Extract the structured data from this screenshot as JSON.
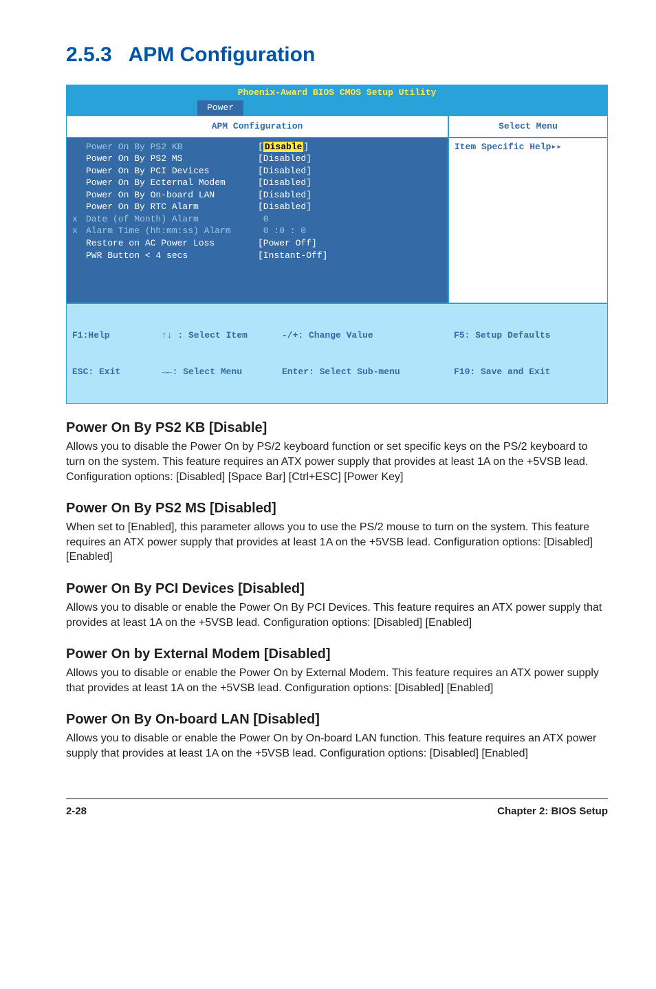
{
  "section": {
    "number": "2.5.3",
    "title": "APM Configuration"
  },
  "bios": {
    "window_title": "Phoenix-Award BIOS CMOS Setup Utility",
    "tab": "Power",
    "left_header": "APM Configuration",
    "right_header": "Select Menu",
    "help_text": "Item Specific Help",
    "rows": [
      {
        "c1": "",
        "c2": "Power On By PS2 KB",
        "val": "Disable",
        "dim": true,
        "highlighted": true,
        "bracket": true
      },
      {
        "c1": "",
        "c2": "Power On By PS2 MS",
        "val": "[Disabled]"
      },
      {
        "c1": "",
        "c2": "Power On By PCI Devices",
        "val": "[Disabled]"
      },
      {
        "c1": "",
        "c2": "Power On By Ecternal Modem",
        "val": "[Disabled]"
      },
      {
        "c1": "",
        "c2": "Power On By On-board LAN",
        "val": "[Disabled]"
      },
      {
        "c1": "",
        "c2": "Power On By RTC Alarm",
        "val": "[Disabled]"
      },
      {
        "c1": "x",
        "c2": "Date (of Month) Alarm",
        "val": " 0",
        "dim": true
      },
      {
        "c1": "x",
        "c2": "Alarm Time (hh:mm:ss) Alarm",
        "val": " 0 :0 : 0",
        "dim": true
      },
      {
        "c1": "",
        "c2": "Restore on AC Power Loss",
        "val": "[Power Off]"
      },
      {
        "c1": "",
        "c2": "PWR Button < 4 secs",
        "val": "[Instant-Off]"
      }
    ],
    "footer": {
      "r1c1": "F1:Help",
      "r1c2": "↑↓ : Select Item",
      "r1c3": "-/+: Change Value",
      "r1c4": "F5: Setup Defaults",
      "r2c1": "ESC: Exit",
      "r2c2": "→←: Select Menu",
      "r2c3": "Enter: Select Sub-menu",
      "r2c4": "F10: Save and Exit"
    }
  },
  "subs": [
    {
      "title": "Power On By PS2 KB  [Disable]",
      "body": "Allows you to disable the Power On by PS/2 keyboard function or set specific keys on the PS/2 keyboard to turn on the system. This feature requires an ATX power supply that provides at least 1A on the +5VSB lead. Configuration options: [Disabled] [Space Bar] [Ctrl+ESC] [Power Key]"
    },
    {
      "title": "Power On By PS2 MS [Disabled]",
      "body": "When set to [Enabled], this parameter allows you to use the PS/2 mouse to turn on the system. This feature requires an ATX power supply that provides at least 1A on the +5VSB lead. Configuration options: [Disabled] [Enabled]"
    },
    {
      "title": "Power On By PCI Devices [Disabled]",
      "body": "Allows you to disable or enable the Power On By PCI Devices. This feature requires an ATX power supply that provides at least 1A on the +5VSB lead. Configuration options: [Disabled] [Enabled]"
    },
    {
      "title": "Power On by External Modem [Disabled]",
      "body": "Allows you to disable or enable the Power On by External Modem. This feature requires an ATX power supply that provides at least 1A on the +5VSB lead. Configuration options: [Disabled] [Enabled]"
    },
    {
      "title": "Power On By On-board LAN [Disabled]",
      "body": "Allows you to disable or enable the Power On by On-board LAN function. This feature requires an ATX power supply that provides at least 1A on the +5VSB lead.  Configuration options: [Disabled] [Enabled]"
    }
  ],
  "footer": {
    "left": "2-28",
    "right": "Chapter 2: BIOS Setup"
  }
}
